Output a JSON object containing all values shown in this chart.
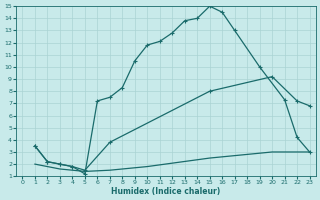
{
  "xlabel": "Humidex (Indice chaleur)",
  "bg_color": "#c8eaea",
  "line_color": "#1a6b6b",
  "grid_color": "#aad4d4",
  "xlim": [
    -0.5,
    23.5
  ],
  "ylim": [
    1,
    15
  ],
  "xticks": [
    0,
    1,
    2,
    3,
    4,
    5,
    6,
    7,
    8,
    9,
    10,
    11,
    12,
    13,
    14,
    15,
    16,
    17,
    18,
    19,
    20,
    21,
    22,
    23
  ],
  "yticks": [
    1,
    2,
    3,
    4,
    5,
    6,
    7,
    8,
    9,
    10,
    11,
    12,
    13,
    14,
    15
  ],
  "curve1_x": [
    1,
    2,
    3,
    4,
    5,
    6,
    7,
    8,
    9,
    10,
    11,
    12,
    13,
    14,
    15,
    16,
    17,
    19,
    21,
    22,
    23
  ],
  "curve1_y": [
    3.5,
    2.2,
    2.0,
    1.8,
    1.2,
    7.2,
    7.5,
    8.3,
    10.5,
    11.8,
    12.1,
    12.8,
    13.8,
    14.0,
    15.0,
    14.5,
    13.0,
    10.0,
    7.3,
    4.2,
    3.0
  ],
  "curve2_x": [
    1,
    2,
    3,
    4,
    5,
    7,
    15,
    20,
    22,
    23
  ],
  "curve2_y": [
    3.5,
    2.2,
    2.0,
    1.8,
    1.5,
    3.8,
    8.0,
    9.2,
    7.2,
    6.8
  ],
  "curve3_x": [
    1,
    2,
    3,
    4,
    5,
    7,
    10,
    15,
    20,
    22,
    23
  ],
  "curve3_y": [
    2.0,
    1.8,
    1.6,
    1.5,
    1.4,
    1.5,
    1.8,
    2.5,
    3.0,
    3.0,
    3.0
  ]
}
